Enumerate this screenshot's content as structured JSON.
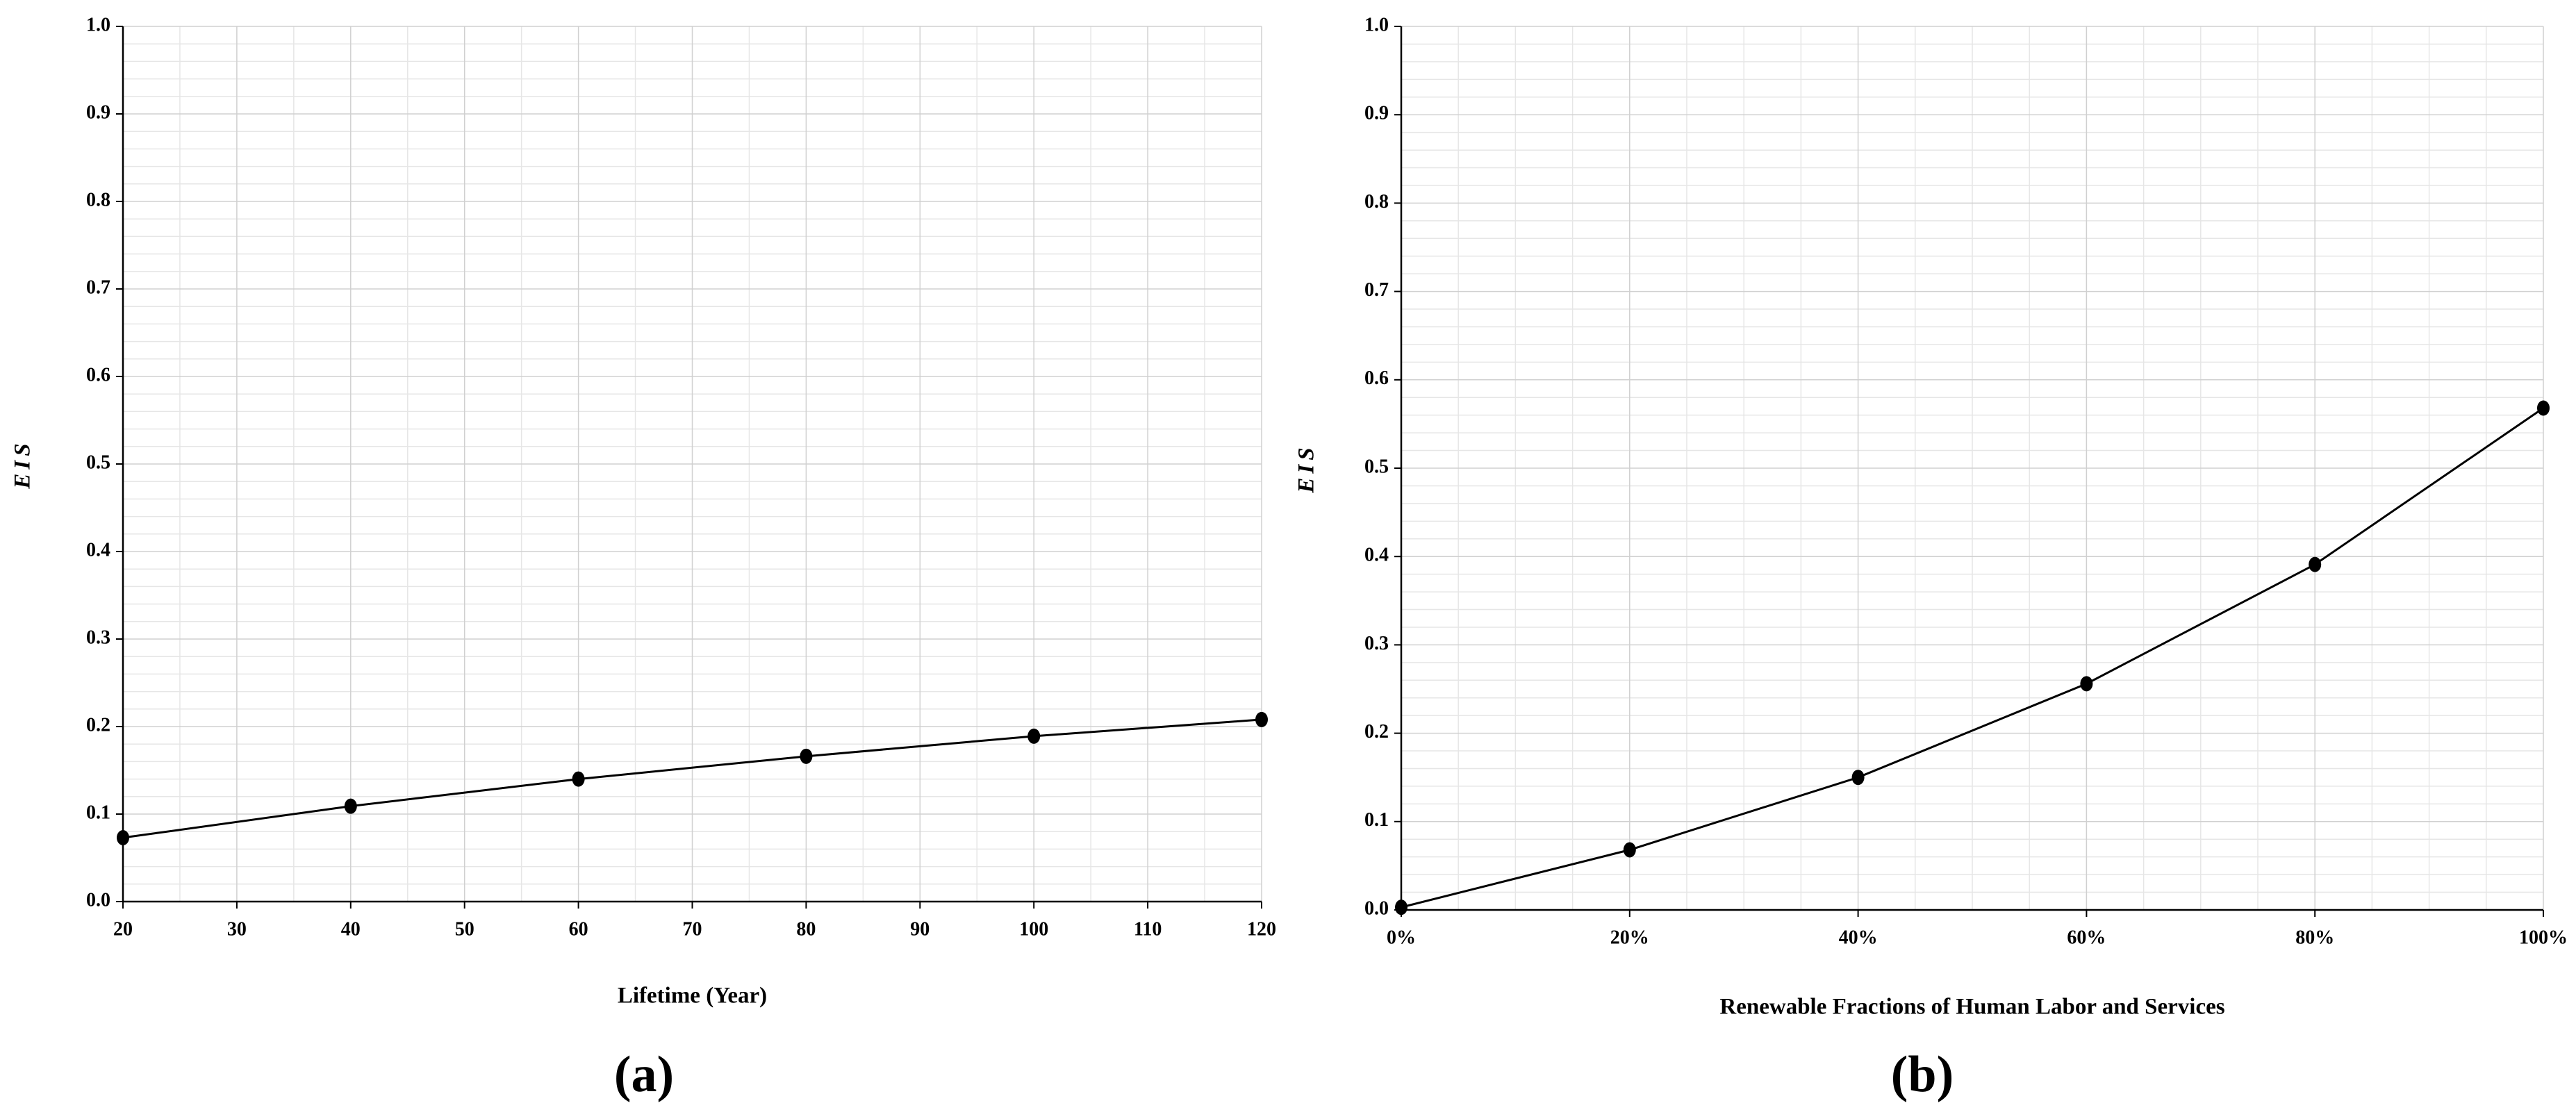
{
  "chart_data": [
    {
      "type": "line",
      "caption": "(a)",
      "xlabel": "Lifetime (Year)",
      "ylabel": "EIS",
      "x": [
        20,
        40,
        60,
        80,
        100,
        120
      ],
      "series": [
        {
          "color": "#000000",
          "values": [
            0.073,
            0.109,
            0.14,
            0.166,
            0.189,
            0.208
          ]
        }
      ],
      "xlim": [
        20,
        120
      ],
      "xticks": [
        20,
        30,
        40,
        50,
        60,
        70,
        80,
        90,
        100,
        110,
        120
      ],
      "ylim": [
        0,
        1
      ],
      "yticks": [
        {
          "value": 0,
          "label": "0.0"
        },
        0.1,
        0.2,
        0.3,
        0.4,
        0.5,
        0.6,
        0.7,
        0.8,
        0.9,
        {
          "value": 1,
          "label": "1.0"
        }
      ],
      "grid": true,
      "minor_grid": true
    },
    {
      "type": "line",
      "caption": "(b)",
      "xlabel": "Renewable Fractions of Human Labor and Services",
      "ylabel": "EIS",
      "x": [
        0,
        0.2,
        0.4,
        0.6,
        0.8,
        1
      ],
      "series": [
        {
          "color": "#000000",
          "values": [
            0.003,
            0.068,
            0.15,
            0.256,
            0.391,
            0.568
          ]
        }
      ],
      "xlim": [
        0,
        1
      ],
      "xticks": [
        {
          "value": 0,
          "label": "0%"
        },
        {
          "value": 0.2,
          "label": "20%"
        },
        {
          "value": 0.4,
          "label": "40%"
        },
        {
          "value": 0.6,
          "label": "60%"
        },
        {
          "value": 0.8,
          "label": "80%"
        },
        {
          "value": 1,
          "label": "100%"
        }
      ],
      "ylim": [
        0,
        1
      ],
      "yticks": [
        {
          "value": 0,
          "label": "0.0"
        },
        0.1,
        0.2,
        0.3,
        0.4,
        0.5,
        0.6,
        0.7,
        0.8,
        0.9,
        {
          "value": 1,
          "label": "1.0"
        }
      ],
      "grid": true,
      "minor_grid": true
    }
  ]
}
